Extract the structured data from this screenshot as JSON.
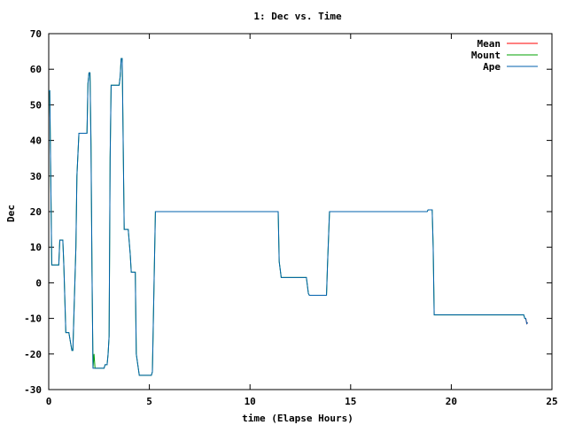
{
  "chart_data": {
    "type": "line",
    "title": "1: Dec vs. Time",
    "xlabel": "time (Elapse Hours)",
    "ylabel": "Dec",
    "xlim": [
      0,
      25
    ],
    "ylim": [
      -30,
      70
    ],
    "x_ticks": [
      0,
      5,
      10,
      15,
      20,
      25
    ],
    "y_ticks": [
      -30,
      -20,
      -10,
      0,
      10,
      20,
      30,
      40,
      50,
      60,
      70
    ],
    "grid": false,
    "legend_position": "top-right",
    "series": [
      {
        "name": "Mean",
        "color": "#ff0000",
        "x": [
          23.7,
          23.75,
          23.8
        ],
        "y": [
          -10,
          -11.5,
          -11.2
        ]
      },
      {
        "name": "Mount",
        "color": "#00a000",
        "x": [
          0,
          0.05,
          0.1,
          0.15,
          0.25,
          0.5,
          0.55,
          0.7,
          0.75,
          0.85,
          0.95,
          1.0,
          1.15,
          1.2,
          1.35,
          1.4,
          1.5,
          1.55,
          1.9,
          1.95,
          2.0,
          2.05,
          2.1,
          2.15,
          2.2,
          2.25,
          2.3,
          2.35,
          2.4,
          2.75,
          2.8,
          2.9,
          2.95,
          3.0,
          3.05,
          3.1,
          3.15,
          3.3,
          3.35,
          3.5,
          3.55,
          3.6,
          3.65,
          3.75,
          3.8,
          3.85,
          3.95,
          4.05,
          4.1,
          4.15,
          4.3,
          4.35,
          4.5,
          4.55,
          4.95,
          5.0,
          5.1,
          5.15,
          5.3,
          8.0,
          11.4,
          11.45,
          11.55,
          11.6,
          12.0,
          12.8,
          12.9,
          12.95,
          13.0,
          13.8,
          13.85,
          13.95,
          14.0,
          17.0,
          18.6,
          18.8,
          18.85,
          19.0,
          19.05,
          19.1,
          19.15,
          19.2,
          20.0,
          22.0,
          23.0,
          23.6,
          23.65,
          23.7
        ],
        "y": [
          54,
          54,
          30,
          5,
          5,
          5,
          12,
          12,
          5,
          -14,
          -14,
          -14,
          -19,
          -19,
          10,
          30,
          42,
          42,
          42,
          56,
          59,
          59,
          40,
          3,
          -24,
          -20,
          -24,
          -24,
          -24,
          -24,
          -23,
          -23,
          -20,
          -15,
          35,
          55.5,
          55.5,
          55.5,
          55.5,
          55.5,
          58,
          63,
          63,
          15,
          15,
          15,
          15,
          8,
          3,
          3,
          3,
          -20,
          -26,
          -26,
          -26,
          -26,
          -26,
          -25,
          20,
          20,
          20,
          6,
          1.5,
          1.5,
          1.5,
          1.5,
          -3,
          -3.5,
          -3.5,
          -3.5,
          5,
          20,
          20,
          20,
          20,
          20,
          20.5,
          20.5,
          20.5,
          10,
          -9,
          -9,
          -9,
          -9,
          -9,
          -9,
          -10,
          -10
        ]
      },
      {
        "name": "Ape",
        "color": "#0060ad",
        "x": [
          0,
          0.05,
          0.1,
          0.15,
          0.25,
          0.5,
          0.55,
          0.7,
          0.75,
          0.85,
          0.95,
          1.0,
          1.15,
          1.2,
          1.35,
          1.4,
          1.5,
          1.55,
          1.9,
          1.95,
          2.0,
          2.05,
          2.1,
          2.15,
          2.2,
          2.25,
          2.3,
          2.35,
          2.4,
          2.75,
          2.8,
          2.9,
          2.95,
          3.0,
          3.05,
          3.1,
          3.15,
          3.3,
          3.35,
          3.5,
          3.55,
          3.6,
          3.65,
          3.75,
          3.8,
          3.85,
          3.95,
          4.05,
          4.1,
          4.15,
          4.3,
          4.35,
          4.5,
          4.55,
          4.95,
          5.0,
          5.1,
          5.15,
          5.3,
          8.0,
          11.4,
          11.45,
          11.55,
          11.6,
          12.0,
          12.8,
          12.9,
          12.95,
          13.0,
          13.8,
          13.85,
          13.95,
          14.0,
          17.0,
          18.6,
          18.8,
          18.85,
          19.0,
          19.05,
          19.1,
          19.15,
          19.2,
          20.0,
          22.0,
          23.0,
          23.6,
          23.65,
          23.7,
          23.75,
          23.8
        ],
        "y": [
          54,
          54,
          30,
          5,
          5,
          5,
          12,
          12,
          5,
          -14,
          -14,
          -14,
          -19,
          -19,
          10,
          30,
          42,
          42,
          42,
          56,
          59,
          59,
          38,
          3,
          -24,
          -24,
          -24,
          -24,
          -24,
          -24,
          -23,
          -23,
          -20,
          -15,
          35,
          55.5,
          55.5,
          55.5,
          55.5,
          55.5,
          58,
          63,
          63,
          15,
          15,
          15,
          15,
          8,
          3,
          3,
          3,
          -20,
          -26,
          -26,
          -26,
          -26,
          -26,
          -25,
          20,
          20,
          20,
          6,
          1.5,
          1.5,
          1.5,
          1.5,
          -3,
          -3.5,
          -3.5,
          -3.5,
          5,
          20,
          20,
          20,
          20,
          20,
          20.5,
          20.5,
          20.5,
          10,
          -9,
          -9,
          -9,
          -9,
          -9,
          -9,
          -10,
          -10,
          -11.5,
          -11.2
        ]
      }
    ]
  }
}
